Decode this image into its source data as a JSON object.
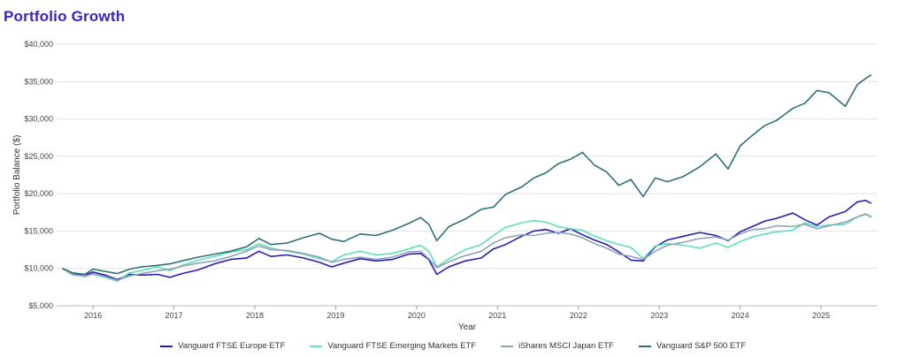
{
  "header": {
    "title": "Portfolio Growth"
  },
  "chart_data": {
    "type": "line",
    "title": "Portfolio Growth",
    "xlabel": "Year",
    "ylabel": "Portfolio Balance ($)",
    "xlim": [
      2015.55,
      2025.7
    ],
    "ylim": [
      5000,
      40000
    ],
    "x_ticks": [
      2016,
      2017,
      2018,
      2019,
      2020,
      2021,
      2022,
      2023,
      2024,
      2025
    ],
    "x_tick_labels": [
      "2016",
      "2017",
      "2018",
      "2019",
      "2020",
      "2021",
      "2022",
      "2023",
      "2024",
      "2025"
    ],
    "y_ticks": [
      5000,
      10000,
      15000,
      20000,
      25000,
      30000,
      35000,
      40000
    ],
    "y_tick_labels": [
      "$5,000",
      "$10,000",
      "$15,000",
      "$20,000",
      "$25,000",
      "$30,000",
      "$35,000",
      "$40,000"
    ],
    "grid": true,
    "legend_position": "bottom",
    "series": [
      {
        "name": "Vanguard FTSE Europe ETF",
        "color": "#2b1bb8",
        "points": [
          [
            2015.62,
            10000
          ],
          [
            2015.75,
            9300
          ],
          [
            2015.9,
            9100
          ],
          [
            2016.0,
            9500
          ],
          [
            2016.15,
            9100
          ],
          [
            2016.3,
            8500
          ],
          [
            2016.45,
            9200
          ],
          [
            2016.6,
            9100
          ],
          [
            2016.8,
            9200
          ],
          [
            2016.95,
            8800
          ],
          [
            2017.1,
            9300
          ],
          [
            2017.3,
            9800
          ],
          [
            2017.5,
            10600
          ],
          [
            2017.7,
            11200
          ],
          [
            2017.9,
            11400
          ],
          [
            2018.05,
            12300
          ],
          [
            2018.2,
            11600
          ],
          [
            2018.4,
            11800
          ],
          [
            2018.6,
            11400
          ],
          [
            2018.8,
            10800
          ],
          [
            2018.95,
            10200
          ],
          [
            2019.1,
            10700
          ],
          [
            2019.3,
            11300
          ],
          [
            2019.5,
            11000
          ],
          [
            2019.7,
            11200
          ],
          [
            2019.9,
            11900
          ],
          [
            2020.05,
            12000
          ],
          [
            2020.15,
            11200
          ],
          [
            2020.25,
            9200
          ],
          [
            2020.4,
            10200
          ],
          [
            2020.6,
            11000
          ],
          [
            2020.8,
            11400
          ],
          [
            2020.95,
            12600
          ],
          [
            2021.1,
            13200
          ],
          [
            2021.3,
            14300
          ],
          [
            2021.45,
            15000
          ],
          [
            2021.6,
            15200
          ],
          [
            2021.75,
            14700
          ],
          [
            2021.9,
            15300
          ],
          [
            2022.05,
            14500
          ],
          [
            2022.2,
            13800
          ],
          [
            2022.35,
            13200
          ],
          [
            2022.5,
            12200
          ],
          [
            2022.65,
            11100
          ],
          [
            2022.8,
            11000
          ],
          [
            2022.95,
            12900
          ],
          [
            2023.1,
            13800
          ],
          [
            2023.3,
            14300
          ],
          [
            2023.5,
            14800
          ],
          [
            2023.7,
            14400
          ],
          [
            2023.85,
            13700
          ],
          [
            2024.0,
            14900
          ],
          [
            2024.15,
            15600
          ],
          [
            2024.3,
            16300
          ],
          [
            2024.45,
            16700
          ],
          [
            2024.65,
            17400
          ],
          [
            2024.8,
            16500
          ],
          [
            2024.95,
            15800
          ],
          [
            2025.1,
            16900
          ],
          [
            2025.3,
            17600
          ],
          [
            2025.45,
            18900
          ],
          [
            2025.55,
            19100
          ],
          [
            2025.62,
            18700
          ]
        ]
      },
      {
        "name": "Vanguard FTSE Emerging Markets ETF",
        "color": "#5fe0b8",
        "points": [
          [
            2015.62,
            10000
          ],
          [
            2015.75,
            9100
          ],
          [
            2015.9,
            9000
          ],
          [
            2016.0,
            9200
          ],
          [
            2016.15,
            8800
          ],
          [
            2016.3,
            8300
          ],
          [
            2016.45,
            9400
          ],
          [
            2016.6,
            9700
          ],
          [
            2016.8,
            10200
          ],
          [
            2016.95,
            9700
          ],
          [
            2017.1,
            10400
          ],
          [
            2017.3,
            11100
          ],
          [
            2017.5,
            11600
          ],
          [
            2017.7,
            12200
          ],
          [
            2017.9,
            12500
          ],
          [
            2018.05,
            13300
          ],
          [
            2018.2,
            12700
          ],
          [
            2018.4,
            12300
          ],
          [
            2018.6,
            11900
          ],
          [
            2018.8,
            11300
          ],
          [
            2018.95,
            10900
          ],
          [
            2019.1,
            11800
          ],
          [
            2019.3,
            12300
          ],
          [
            2019.5,
            11800
          ],
          [
            2019.7,
            12000
          ],
          [
            2019.9,
            12600
          ],
          [
            2020.05,
            13100
          ],
          [
            2020.15,
            12300
          ],
          [
            2020.25,
            10200
          ],
          [
            2020.4,
            11300
          ],
          [
            2020.6,
            12500
          ],
          [
            2020.8,
            13200
          ],
          [
            2020.95,
            14400
          ],
          [
            2021.1,
            15500
          ],
          [
            2021.3,
            16100
          ],
          [
            2021.45,
            16400
          ],
          [
            2021.6,
            16200
          ],
          [
            2021.75,
            15600
          ],
          [
            2021.9,
            15300
          ],
          [
            2022.05,
            15100
          ],
          [
            2022.2,
            14300
          ],
          [
            2022.35,
            13700
          ],
          [
            2022.5,
            13200
          ],
          [
            2022.65,
            12800
          ],
          [
            2022.8,
            11300
          ],
          [
            2022.95,
            13000
          ],
          [
            2023.1,
            13300
          ],
          [
            2023.3,
            13100
          ],
          [
            2023.5,
            12700
          ],
          [
            2023.7,
            13400
          ],
          [
            2023.85,
            12800
          ],
          [
            2024.0,
            13600
          ],
          [
            2024.15,
            14200
          ],
          [
            2024.3,
            14600
          ],
          [
            2024.45,
            14900
          ],
          [
            2024.65,
            15100
          ],
          [
            2024.8,
            16100
          ],
          [
            2024.95,
            15600
          ],
          [
            2025.1,
            15800
          ],
          [
            2025.3,
            15900
          ],
          [
            2025.45,
            16900
          ],
          [
            2025.55,
            17200
          ],
          [
            2025.62,
            17000
          ]
        ]
      },
      {
        "name": "iShares MSCI Japan ETF",
        "color": "#8fa4b8",
        "points": [
          [
            2015.62,
            10000
          ],
          [
            2015.75,
            9200
          ],
          [
            2015.9,
            8900
          ],
          [
            2016.0,
            9300
          ],
          [
            2016.15,
            8900
          ],
          [
            2016.3,
            8400
          ],
          [
            2016.45,
            9000
          ],
          [
            2016.6,
            9300
          ],
          [
            2016.8,
            9700
          ],
          [
            2016.95,
            9900
          ],
          [
            2017.1,
            10300
          ],
          [
            2017.3,
            10700
          ],
          [
            2017.5,
            11000
          ],
          [
            2017.7,
            11600
          ],
          [
            2017.9,
            12300
          ],
          [
            2018.05,
            13000
          ],
          [
            2018.2,
            12500
          ],
          [
            2018.4,
            12400
          ],
          [
            2018.6,
            12000
          ],
          [
            2018.8,
            11500
          ],
          [
            2018.95,
            10800
          ],
          [
            2019.1,
            11200
          ],
          [
            2019.3,
            11500
          ],
          [
            2019.5,
            11200
          ],
          [
            2019.7,
            11500
          ],
          [
            2019.9,
            12200
          ],
          [
            2020.05,
            12300
          ],
          [
            2020.15,
            11300
          ],
          [
            2020.25,
            10100
          ],
          [
            2020.4,
            10900
          ],
          [
            2020.6,
            11700
          ],
          [
            2020.8,
            12300
          ],
          [
            2020.95,
            13400
          ],
          [
            2021.1,
            14100
          ],
          [
            2021.3,
            14500
          ],
          [
            2021.45,
            14400
          ],
          [
            2021.6,
            14700
          ],
          [
            2021.75,
            14800
          ],
          [
            2021.9,
            14600
          ],
          [
            2022.05,
            14100
          ],
          [
            2022.2,
            13300
          ],
          [
            2022.35,
            12700
          ],
          [
            2022.5,
            11900
          ],
          [
            2022.65,
            11600
          ],
          [
            2022.8,
            11200
          ],
          [
            2022.95,
            12300
          ],
          [
            2023.1,
            13100
          ],
          [
            2023.3,
            13500
          ],
          [
            2023.5,
            14000
          ],
          [
            2023.7,
            14200
          ],
          [
            2023.85,
            13800
          ],
          [
            2024.0,
            14600
          ],
          [
            2024.15,
            15200
          ],
          [
            2024.3,
            15300
          ],
          [
            2024.45,
            15700
          ],
          [
            2024.65,
            15600
          ],
          [
            2024.8,
            15900
          ],
          [
            2024.95,
            15300
          ],
          [
            2025.1,
            15700
          ],
          [
            2025.3,
            16200
          ],
          [
            2025.45,
            16900
          ],
          [
            2025.55,
            17300
          ],
          [
            2025.62,
            16800
          ]
        ]
      },
      {
        "name": "Vanguard S&P 500 ETF",
        "color": "#2e6f78",
        "points": [
          [
            2015.62,
            10000
          ],
          [
            2015.75,
            9400
          ],
          [
            2015.9,
            9200
          ],
          [
            2016.0,
            9900
          ],
          [
            2016.15,
            9600
          ],
          [
            2016.3,
            9300
          ],
          [
            2016.45,
            9900
          ],
          [
            2016.6,
            10200
          ],
          [
            2016.8,
            10400
          ],
          [
            2016.95,
            10600
          ],
          [
            2017.1,
            11000
          ],
          [
            2017.3,
            11500
          ],
          [
            2017.5,
            11900
          ],
          [
            2017.7,
            12300
          ],
          [
            2017.9,
            12900
          ],
          [
            2018.05,
            14000
          ],
          [
            2018.2,
            13200
          ],
          [
            2018.4,
            13400
          ],
          [
            2018.6,
            14100
          ],
          [
            2018.8,
            14700
          ],
          [
            2018.95,
            13900
          ],
          [
            2019.1,
            13600
          ],
          [
            2019.3,
            14600
          ],
          [
            2019.5,
            14400
          ],
          [
            2019.7,
            15100
          ],
          [
            2019.9,
            16000
          ],
          [
            2020.05,
            16800
          ],
          [
            2020.15,
            15900
          ],
          [
            2020.25,
            13700
          ],
          [
            2020.4,
            15600
          ],
          [
            2020.6,
            16600
          ],
          [
            2020.8,
            17900
          ],
          [
            2020.95,
            18200
          ],
          [
            2021.1,
            19900
          ],
          [
            2021.3,
            20900
          ],
          [
            2021.45,
            22100
          ],
          [
            2021.6,
            22800
          ],
          [
            2021.75,
            24000
          ],
          [
            2021.9,
            24600
          ],
          [
            2022.05,
            25500
          ],
          [
            2022.2,
            23800
          ],
          [
            2022.35,
            22900
          ],
          [
            2022.5,
            21100
          ],
          [
            2022.65,
            21900
          ],
          [
            2022.8,
            19600
          ],
          [
            2022.95,
            22100
          ],
          [
            2023.1,
            21600
          ],
          [
            2023.3,
            22300
          ],
          [
            2023.5,
            23600
          ],
          [
            2023.7,
            25300
          ],
          [
            2023.85,
            23300
          ],
          [
            2024.0,
            26400
          ],
          [
            2024.15,
            27800
          ],
          [
            2024.3,
            29100
          ],
          [
            2024.45,
            29800
          ],
          [
            2024.65,
            31400
          ],
          [
            2024.8,
            32100
          ],
          [
            2024.95,
            33800
          ],
          [
            2025.1,
            33500
          ],
          [
            2025.3,
            31700
          ],
          [
            2025.45,
            34600
          ],
          [
            2025.55,
            35400
          ],
          [
            2025.62,
            35900
          ]
        ]
      }
    ]
  }
}
